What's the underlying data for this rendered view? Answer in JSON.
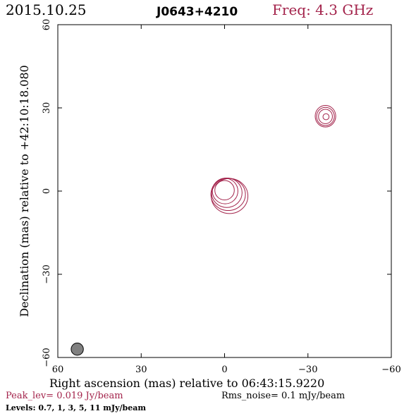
{
  "header": {
    "date": "2015.10.25",
    "source": "J0643+4210",
    "freq": "Freq: 4.3 GHz"
  },
  "footer": {
    "xlabel": "Right ascension (mas) relative to 06:43:15.9220",
    "peak": "Peak_lev=  0.019 Jy/beam",
    "rms": "Rms_noise=  0.1 mJy/beam",
    "levels": "Levels: 0.7,    1,    3,    5,   11 mJy/beam"
  },
  "colors": {
    "contour": "#a3234b",
    "beam_fill": "#808080",
    "accent": "#a3234b"
  },
  "chart_data": {
    "type": "contour",
    "xlabel": "Right ascension (mas) relative to 06:43:15.9220",
    "ylabel": "Declination (mas) relative to +42:10:18.080",
    "xlim": [
      60,
      -60
    ],
    "ylim": [
      -60,
      60
    ],
    "x_ticks": [
      60,
      30,
      0,
      -30,
      -60
    ],
    "y_ticks": [
      60,
      30,
      0,
      -30,
      -60
    ],
    "x_tick_labels": [
      "60",
      "30",
      "0",
      "−30",
      "−60"
    ],
    "y_tick_labels": [
      "60",
      "30",
      "0",
      "−30",
      "−60"
    ],
    "peak_jy_per_beam": 0.019,
    "rms_mjy_per_beam": 0.1,
    "contour_levels_mjy": [
      0.7,
      1,
      3,
      5,
      11
    ],
    "components": [
      {
        "x": 0,
        "y": 0,
        "contours": [
          {
            "cx": 0.0,
            "cy": 0.3,
            "rx": 3.5,
            "ry": 3.5
          },
          {
            "cx": -0.2,
            "cy": 0.0,
            "rx": 4.6,
            "ry": 4.6
          },
          {
            "cx": -0.8,
            "cy": -0.6,
            "rx": 5.5,
            "ry": 5.3
          },
          {
            "cx": -1.3,
            "cy": -1.2,
            "rx": 6.2,
            "ry": 5.8
          },
          {
            "cx": -1.8,
            "cy": -1.8,
            "rx": 6.6,
            "ry": 6.3
          }
        ]
      },
      {
        "x": -36.5,
        "y": 27,
        "contours": [
          {
            "cx": -36.5,
            "cy": 26.8,
            "rx": 1.1,
            "ry": 1.1
          },
          {
            "cx": -36.3,
            "cy": 26.9,
            "rx": 2.5,
            "ry": 2.6
          },
          {
            "cx": -36.3,
            "cy": 26.9,
            "rx": 3.2,
            "ry": 3.3
          },
          {
            "cx": -36.3,
            "cy": 27.0,
            "rx": 3.7,
            "ry": 3.9
          }
        ]
      }
    ],
    "beam": {
      "x": 53,
      "y": -57,
      "major": 4.4,
      "minor": 4.4
    }
  }
}
